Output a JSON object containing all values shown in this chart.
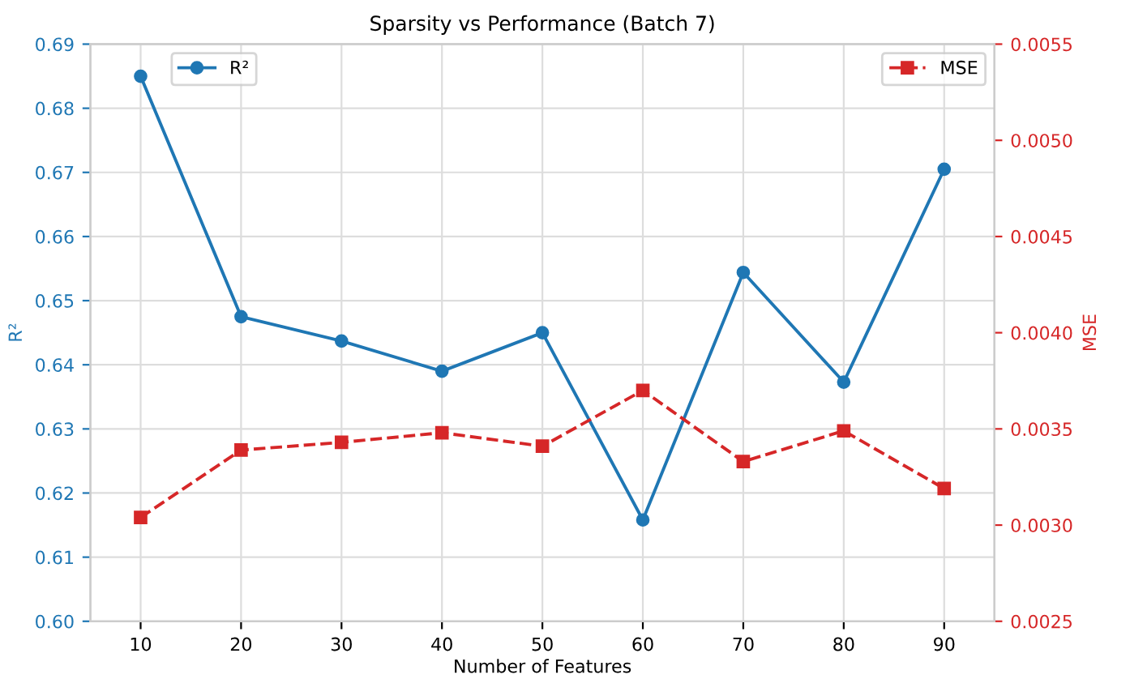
{
  "chart_data": {
    "type": "line",
    "title": "Sparsity vs Performance (Batch 7)",
    "xlabel": "Number of Features",
    "ylabel": "R²",
    "y2label": "MSE",
    "x": [
      10,
      20,
      30,
      40,
      50,
      60,
      70,
      80,
      90
    ],
    "series": [
      {
        "name": "R²",
        "color": "#1f77b4",
        "marker": "circle",
        "line_style": "solid",
        "values": [
          0.685,
          0.6475,
          0.6437,
          0.639,
          0.645,
          0.6158,
          0.6544,
          0.6373,
          0.6705
        ]
      },
      {
        "name": "MSE",
        "color": "#d62728",
        "marker": "square",
        "line_style": "dashed",
        "axis": "y2",
        "values": [
          0.00304,
          0.00339,
          0.00343,
          0.00348,
          0.00341,
          0.0037,
          0.00333,
          0.00349,
          0.00319
        ]
      }
    ],
    "xlim": [
      5,
      95
    ],
    "xticks": [
      10,
      20,
      30,
      40,
      50,
      60,
      70,
      80,
      90
    ],
    "ylim": [
      0.6,
      0.69
    ],
    "yticks": [
      {
        "value": 0.6,
        "label": "0.60"
      },
      {
        "value": 0.61,
        "label": "0.61"
      },
      {
        "value": 0.62,
        "label": "0.62"
      },
      {
        "value": 0.63,
        "label": "0.63"
      },
      {
        "value": 0.64,
        "label": "0.64"
      },
      {
        "value": 0.65,
        "label": "0.65"
      },
      {
        "value": 0.66,
        "label": "0.66"
      },
      {
        "value": 0.67,
        "label": "0.67"
      },
      {
        "value": 0.68,
        "label": "0.68"
      },
      {
        "value": 0.69,
        "label": "0.69"
      }
    ],
    "y2lim": [
      0.0025,
      0.0055
    ],
    "y2ticks": [
      0.0025,
      {
        "value": 0.003,
        "label": "0.0030"
      },
      0.0035,
      {
        "value": 0.004,
        "label": "0.0040"
      },
      0.0045,
      {
        "value": 0.005,
        "label": "0.0050"
      },
      0.0055
    ],
    "grid": true,
    "legend": "top"
  }
}
